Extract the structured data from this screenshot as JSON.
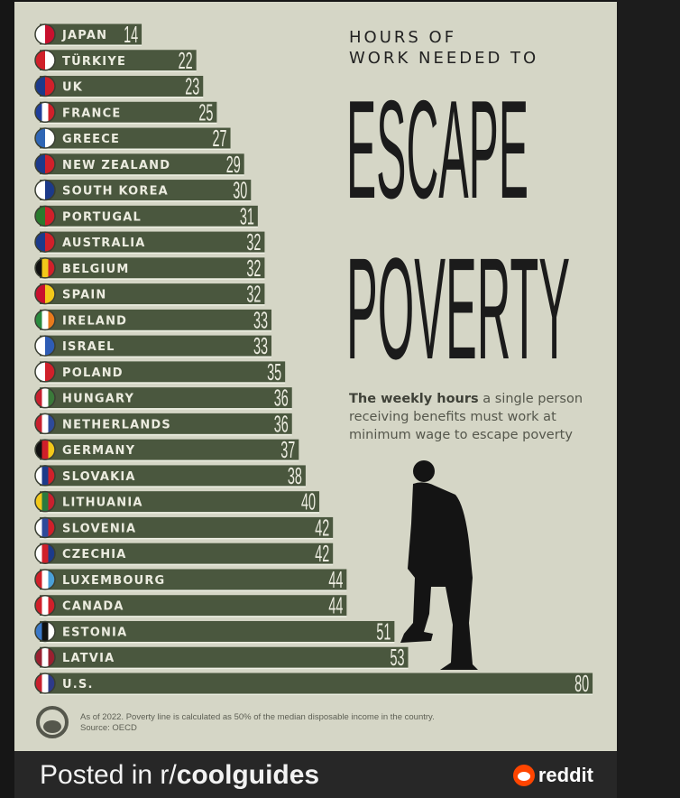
{
  "chart_data": {
    "type": "bar",
    "orientation": "horizontal",
    "title_small": "HOURS OF WORK NEEDED TO",
    "title_line1": "HOURS OF",
    "title_line2": "WORK NEEDED TO",
    "title_big1": "ESCAPE",
    "title_big2": "POVERTY",
    "subtitle_bold": "The weekly hours",
    "subtitle_rest": " a single person receiving benefits must work at minimum wage to escape poverty",
    "note": "As of 2022. Poverty line is calculated as 50% of the median disposable income in the country.",
    "source": "Source: OECD",
    "bar_color": "#4a573e",
    "categories": [
      "JAPAN",
      "TÜRKIYE",
      "UK",
      "FRANCE",
      "GREECE",
      "NEW ZEALAND",
      "SOUTH KOREA",
      "PORTUGAL",
      "AUSTRALIA",
      "BELGIUM",
      "SPAIN",
      "IRELAND",
      "ISRAEL",
      "POLAND",
      "HUNGARY",
      "NETHERLANDS",
      "GERMANY",
      "SLOVAKIA",
      "LITHUANIA",
      "SLOVENIA",
      "CZECHIA",
      "LUXEMBOURG",
      "CANADA",
      "ESTONIA",
      "LATVIA",
      "U.S."
    ],
    "values": [
      14,
      22,
      23,
      25,
      27,
      29,
      30,
      31,
      32,
      32,
      32,
      33,
      33,
      35,
      36,
      36,
      37,
      38,
      40,
      42,
      42,
      44,
      44,
      51,
      53,
      80
    ],
    "flag_colors": [
      [
        "#ffffff",
        "#c8102e"
      ],
      [
        "#d0202a",
        "#ffffff"
      ],
      [
        "#1c3a8a",
        "#d0202a"
      ],
      [
        "#1f3e9a",
        "#ffffff",
        "#d0202a"
      ],
      [
        "#2f66b5",
        "#ffffff"
      ],
      [
        "#1c3a8a",
        "#d0202a"
      ],
      [
        "#ffffff",
        "#1c3a8a"
      ],
      [
        "#2a7a2e",
        "#d0202a"
      ],
      [
        "#1c3a8a",
        "#d0202a"
      ],
      [
        "#111111",
        "#f2c81a",
        "#d0202a"
      ],
      [
        "#c8102e",
        "#f2c81a"
      ],
      [
        "#2a8a3e",
        "#ffffff",
        "#e87a1c"
      ],
      [
        "#ffffff",
        "#2e5cb5"
      ],
      [
        "#ffffff",
        "#d0202a"
      ],
      [
        "#c8202e",
        "#ffffff",
        "#3a7a3a"
      ],
      [
        "#c8202e",
        "#ffffff",
        "#2e4a9a"
      ],
      [
        "#111111",
        "#d0202a",
        "#f2c81a"
      ],
      [
        "#ffffff",
        "#1c3a8a",
        "#d0202a"
      ],
      [
        "#f2c81a",
        "#2a7a3e",
        "#c8202e"
      ],
      [
        "#ffffff",
        "#2e4a9a",
        "#d0202a"
      ],
      [
        "#ffffff",
        "#d0202a",
        "#1c3a8a"
      ],
      [
        "#d0202a",
        "#ffffff",
        "#4aa0d8"
      ],
      [
        "#d0202a",
        "#ffffff",
        "#d0202a"
      ],
      [
        "#3a78c8",
        "#111111",
        "#ffffff"
      ],
      [
        "#9a2030",
        "#ffffff",
        "#9a2030"
      ],
      [
        "#c8202e",
        "#ffffff",
        "#2e3a8a"
      ]
    ]
  },
  "footer": {
    "posted_prefix": "Posted in r/",
    "subreddit": "coolguides",
    "brand": "reddit"
  }
}
